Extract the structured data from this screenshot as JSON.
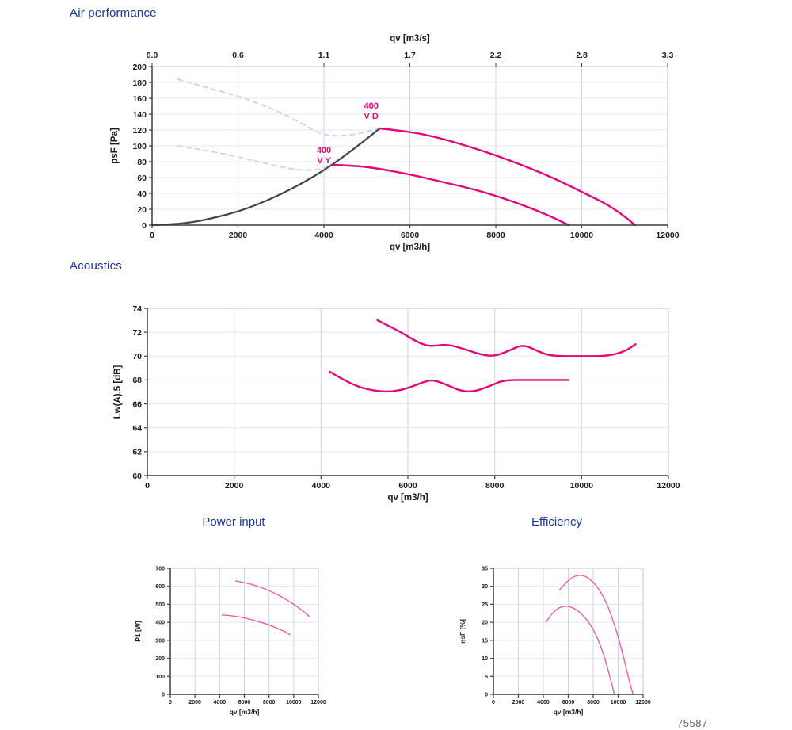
{
  "page": {
    "doc_number": "75587"
  },
  "sections": {
    "air_title": "Air performance",
    "acoustics_title": "Acoustics",
    "power_title": "Power input",
    "efficiency_title": "Efficiency"
  },
  "colors": {
    "title_blue": "#1c339c",
    "curve_magenta": "#e2077c",
    "curve_pink_thin": "#ea5f9f",
    "curve_dark": "#454545",
    "curve_dashed_blue": "#c9d5e6",
    "grid_horizontal": "#e0e7f1",
    "grid_vertical": "#ccd5e8",
    "plot_border_light": "#b9c7dd",
    "axis_dark": "#3c3c3c",
    "tick_text": "#1a1a1a",
    "doc_number_gray": "#5d646e"
  },
  "chart_data": [
    {
      "id": "air",
      "type": "line",
      "title": "Air performance",
      "xlabel": "qv [m3/h]",
      "ylabel": "psF [Pa]",
      "x2label": "qv [m3/s]",
      "x2ticks": [
        "0.0",
        "0.6",
        "1.1",
        "1.7",
        "2.2",
        "2.8",
        "3.3"
      ],
      "xlim": [
        0,
        12000
      ],
      "xtick_step": 2000,
      "ylim": [
        0,
        200
      ],
      "ytick_step": 20,
      "grid": true,
      "legend": "none",
      "series": [
        {
          "name": "max-curve-delta-dashed",
          "color": "#c9d5e6",
          "width": 1.8,
          "dash": "6 5",
          "points": [
            [
              600,
              184
            ],
            [
              1100,
              176
            ],
            [
              2000,
              163
            ],
            [
              2800,
              147
            ],
            [
              3400,
              131
            ],
            [
              3900,
              115
            ],
            [
              4300,
              112
            ],
            [
              4800,
              115
            ],
            [
              5300,
              122
            ]
          ]
        },
        {
          "name": "max-curve-wye-dashed",
          "color": "#c9d5e6",
          "width": 1.8,
          "dash": "6 5",
          "points": [
            [
              600,
              100
            ],
            [
              1200,
              95
            ],
            [
              2000,
              86
            ],
            [
              2700,
              77
            ],
            [
              3200,
              71
            ],
            [
              3600,
              69
            ],
            [
              3900,
              70
            ],
            [
              4200,
              76
            ]
          ]
        },
        {
          "name": "system-resistance-curve",
          "color": "#454545",
          "width": 2.2,
          "dash": null,
          "points": [
            [
              0,
              0
            ],
            [
              500,
              1
            ],
            [
              1000,
              4
            ],
            [
              1500,
              10
            ],
            [
              2000,
              17
            ],
            [
              2500,
              27
            ],
            [
              3000,
              39
            ],
            [
              3500,
              53
            ],
            [
              4000,
              69
            ],
            [
              4500,
              88
            ],
            [
              5000,
              109
            ],
            [
              5300,
              122
            ]
          ]
        },
        {
          "name": "400V-delta-curve",
          "color": "#e2077c",
          "width": 2.4,
          "dash": null,
          "points": [
            [
              5300,
              122
            ],
            [
              6000,
              118
            ],
            [
              6700,
              110
            ],
            [
              7500,
              97
            ],
            [
              8000,
              88
            ],
            [
              8700,
              74
            ],
            [
              9400,
              58
            ],
            [
              10000,
              42
            ],
            [
              10600,
              26
            ],
            [
              11000,
              11
            ],
            [
              11240,
              0
            ]
          ]
        },
        {
          "name": "400V-wye-curve",
          "color": "#e2077c",
          "width": 2.4,
          "dash": null,
          "points": [
            [
              4200,
              76
            ],
            [
              4700,
              75
            ],
            [
              5200,
              72
            ],
            [
              6000,
              64
            ],
            [
              6800,
              54
            ],
            [
              7500,
              45
            ],
            [
              8000,
              37
            ],
            [
              8600,
              26
            ],
            [
              9200,
              13
            ],
            [
              9700,
              0
            ]
          ]
        }
      ],
      "annotations": [
        {
          "lines": [
            "400",
            "V D"
          ],
          "x": 5100,
          "y": 147,
          "color": "#e2077c"
        },
        {
          "lines": [
            "400",
            "V Y"
          ],
          "x": 4000,
          "y": 91,
          "color": "#e2077c"
        }
      ]
    },
    {
      "id": "acoustics",
      "type": "line",
      "title": "Acoustics",
      "xlabel": "qv [m3/h]",
      "ylabel": "Lw(A),5 [dB]",
      "xlim": [
        0,
        12000
      ],
      "xtick_step": 2000,
      "ylim": [
        60,
        74
      ],
      "ytick_step": 2,
      "grid": true,
      "legend": "none",
      "series": [
        {
          "name": "400V-delta-noise-curve",
          "color": "#e2077c",
          "width": 2.4,
          "dash": null,
          "points": [
            [
              5300,
              73
            ],
            [
              5800,
              72.1
            ],
            [
              6200,
              71.2
            ],
            [
              6500,
              70.8
            ],
            [
              6900,
              71
            ],
            [
              7300,
              70.6
            ],
            [
              7700,
              70.1
            ],
            [
              8000,
              70
            ],
            [
              8300,
              70.4
            ],
            [
              8650,
              71
            ],
            [
              9000,
              70.4
            ],
            [
              9300,
              70
            ],
            [
              10000,
              70
            ],
            [
              10600,
              70
            ],
            [
              11000,
              70.4
            ],
            [
              11240,
              71
            ]
          ]
        },
        {
          "name": "400V-wye-noise-curve",
          "color": "#e2077c",
          "width": 2.4,
          "dash": null,
          "points": [
            [
              4200,
              68.7
            ],
            [
              4700,
              67.6
            ],
            [
              5200,
              67.1
            ],
            [
              5600,
              67
            ],
            [
              6000,
              67.3
            ],
            [
              6400,
              67.9
            ],
            [
              6600,
              68
            ],
            [
              6900,
              67.6
            ],
            [
              7200,
              67.1
            ],
            [
              7500,
              67
            ],
            [
              7900,
              67.5
            ],
            [
              8200,
              68
            ],
            [
              8800,
              68
            ],
            [
              9300,
              68
            ],
            [
              9700,
              68
            ]
          ]
        }
      ],
      "annotations": []
    },
    {
      "id": "power",
      "type": "line",
      "title": "Power input",
      "xlabel": "qv [m3/h]",
      "ylabel": "P1 [W]",
      "xlim": [
        0,
        12000
      ],
      "xtick_step": 2000,
      "ylim": [
        0,
        700
      ],
      "ytick_step": 100,
      "grid": true,
      "legend": "none",
      "series": [
        {
          "name": "400V-delta-power-curve",
          "color": "#ea5f9f",
          "width": 1.4,
          "dash": null,
          "points": [
            [
              5300,
              630
            ],
            [
              6000,
              621
            ],
            [
              7000,
              603
            ],
            [
              8000,
              577
            ],
            [
              9000,
              543
            ],
            [
              10000,
              501
            ],
            [
              10700,
              466
            ],
            [
              11240,
              434
            ]
          ]
        },
        {
          "name": "400V-wye-power-curve",
          "color": "#ea5f9f",
          "width": 1.4,
          "dash": null,
          "points": [
            [
              4200,
              441
            ],
            [
              5000,
              437
            ],
            [
              6000,
              425
            ],
            [
              7000,
              408
            ],
            [
              8000,
              386
            ],
            [
              8800,
              363
            ],
            [
              9400,
              345
            ],
            [
              9700,
              332
            ]
          ]
        }
      ],
      "annotations": []
    },
    {
      "id": "efficiency",
      "type": "line",
      "title": "Efficiency",
      "xlabel": "qv [m3/h]",
      "ylabel": "ηsF [%]",
      "xlim": [
        0,
        12000
      ],
      "xtick_step": 2000,
      "ylim": [
        0,
        35
      ],
      "ytick_step": 5,
      "grid": true,
      "legend": "none",
      "series": [
        {
          "name": "400V-delta-efficiency-curve",
          "color": "#ea5f9f",
          "width": 1.4,
          "dash": null,
          "points": [
            [
              5300,
              29
            ],
            [
              5800,
              31
            ],
            [
              6300,
              32.5
            ],
            [
              6900,
              33.2
            ],
            [
              7400,
              32.8
            ],
            [
              7900,
              31.5
            ],
            [
              8400,
              29.5
            ],
            [
              9000,
              26
            ],
            [
              9500,
              21.5
            ],
            [
              10000,
              16
            ],
            [
              10500,
              9.5
            ],
            [
              10900,
              3.5
            ],
            [
              11200,
              0
            ]
          ]
        },
        {
          "name": "400V-wye-efficiency-curve",
          "color": "#ea5f9f",
          "width": 1.4,
          "dash": null,
          "points": [
            [
              4200,
              20
            ],
            [
              4700,
              22.5
            ],
            [
              5200,
              24
            ],
            [
              5800,
              24.6
            ],
            [
              6300,
              24.2
            ],
            [
              6800,
              23.2
            ],
            [
              7300,
              21.5
            ],
            [
              7800,
              19.3
            ],
            [
              8300,
              16
            ],
            [
              8800,
              11.5
            ],
            [
              9300,
              5.5
            ],
            [
              9700,
              0
            ]
          ]
        }
      ],
      "annotations": []
    }
  ]
}
